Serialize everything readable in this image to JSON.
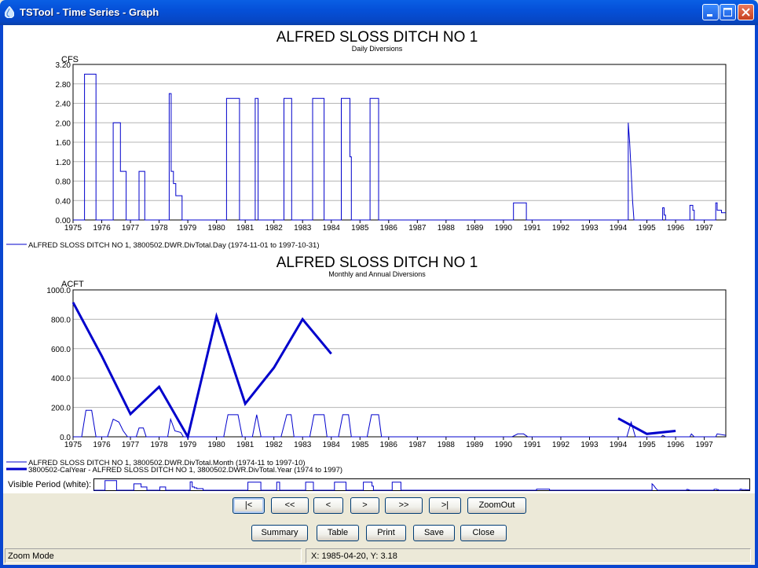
{
  "window": {
    "title": "TSTool - Time Series - Graph"
  },
  "colors": {
    "series": "#0000CC",
    "grid": "#B4B4B4",
    "axis": "#000000"
  },
  "graph1": {
    "title": "ALFRED SLOSS DITCH NO 1",
    "subtitle": "Daily Diversions",
    "units": "CFS",
    "legend": [
      "ALFRED SLOSS DITCH NO 1, 3800502.DWR.DivTotal.Day (1974-11-01 to 1997-10-31)"
    ]
  },
  "graph2": {
    "title": "ALFRED SLOSS DITCH NO 1",
    "subtitle": "Monthly and Annual Diversions",
    "units": "ACFT",
    "legend": [
      "ALFRED SLOSS DITCH NO 1, 3800502.DWR.DivTotal.Month (1974-11 to 1997-10)",
      "3800502-CalYear - ALFRED SLOSS DITCH NO 1, 3800502.DWR.DivTotal.Year (1974 to 1997)"
    ]
  },
  "visible_period_label": "Visible Period (white):",
  "nav_buttons": [
    "|<",
    "<<",
    "<",
    ">",
    ">>",
    ">|",
    "ZoomOut"
  ],
  "action_buttons": [
    "Summary",
    "Table",
    "Print",
    "Save",
    "Close"
  ],
  "status": {
    "mode": "Zoom Mode",
    "coords": "X:  1985-04-20,  Y:  3.18"
  },
  "chart_data": [
    {
      "type": "line",
      "title": "ALFRED SLOSS DITCH NO 1",
      "subtitle": "Daily Diversions",
      "ylabel": "CFS",
      "xlim": [
        1975,
        1997.75
      ],
      "ylim": [
        0,
        3.2
      ],
      "x_ticks": [
        1975,
        1976,
        1977,
        1978,
        1979,
        1980,
        1981,
        1982,
        1983,
        1984,
        1985,
        1986,
        1987,
        1988,
        1989,
        1990,
        1991,
        1992,
        1993,
        1994,
        1995,
        1996,
        1997
      ],
      "y_ticks": [
        "0.00",
        "0.40",
        "0.80",
        "1.20",
        "1.60",
        "2.00",
        "2.40",
        "2.80",
        "3.20"
      ],
      "grid": true,
      "series": [
        {
          "name": "ALFRED SLOSS DITCH NO 1, 3800502.DWR.DivTotal.Day (1974-11-01 to 1997-10-31)",
          "step": true,
          "points": [
            [
              1975,
              0
            ],
            [
              1975.4,
              0
            ],
            [
              1975.4,
              3.0
            ],
            [
              1975.8,
              3.0
            ],
            [
              1975.8,
              0
            ],
            [
              1976.4,
              0
            ],
            [
              1976.4,
              2.0
            ],
            [
              1976.65,
              2.0
            ],
            [
              1976.65,
              1.0
            ],
            [
              1976.85,
              1.0
            ],
            [
              1976.85,
              0
            ],
            [
              1977.3,
              0
            ],
            [
              1977.3,
              1.0
            ],
            [
              1977.5,
              1.0
            ],
            [
              1977.5,
              0
            ],
            [
              1978.35,
              0
            ],
            [
              1978.35,
              2.6
            ],
            [
              1978.42,
              2.6
            ],
            [
              1978.42,
              1.0
            ],
            [
              1978.5,
              1.0
            ],
            [
              1978.5,
              0.75
            ],
            [
              1978.58,
              0.75
            ],
            [
              1978.58,
              0.5
            ],
            [
              1978.8,
              0.5
            ],
            [
              1978.8,
              0
            ],
            [
              1980.35,
              0
            ],
            [
              1980.35,
              2.5
            ],
            [
              1980.8,
              2.5
            ],
            [
              1980.8,
              0
            ],
            [
              1981.35,
              0
            ],
            [
              1981.35,
              2.5
            ],
            [
              1981.45,
              2.5
            ],
            [
              1981.45,
              0
            ],
            [
              1982.35,
              0
            ],
            [
              1982.35,
              2.5
            ],
            [
              1982.62,
              2.5
            ],
            [
              1982.62,
              0
            ],
            [
              1983.35,
              0
            ],
            [
              1983.35,
              2.5
            ],
            [
              1983.75,
              2.5
            ],
            [
              1983.75,
              0
            ],
            [
              1984.35,
              0
            ],
            [
              1984.35,
              2.5
            ],
            [
              1984.65,
              2.5
            ],
            [
              1984.65,
              1.3
            ],
            [
              1984.7,
              1.3
            ],
            [
              1984.7,
              0
            ],
            [
              1985.35,
              0
            ],
            [
              1985.35,
              2.5
            ],
            [
              1985.65,
              2.5
            ],
            [
              1985.65,
              0
            ],
            [
              1990.35,
              0
            ],
            [
              1990.35,
              0.35
            ],
            [
              1990.8,
              0.35
            ],
            [
              1990.8,
              0
            ],
            [
              1994.35,
              0
            ],
            [
              1994.35,
              2.0
            ],
            [
              1994.4,
              1.6
            ],
            [
              1994.45,
              1.0
            ],
            [
              1994.5,
              0.4
            ],
            [
              1994.55,
              0
            ],
            [
              1995.55,
              0
            ],
            [
              1995.55,
              0.25
            ],
            [
              1995.6,
              0.25
            ],
            [
              1995.6,
              0.1
            ],
            [
              1995.65,
              0.1
            ],
            [
              1995.65,
              0
            ],
            [
              1996.5,
              0
            ],
            [
              1996.5,
              0.3
            ],
            [
              1996.6,
              0.3
            ],
            [
              1996.6,
              0.2
            ],
            [
              1996.65,
              0.2
            ],
            [
              1996.65,
              0
            ],
            [
              1997.4,
              0
            ],
            [
              1997.4,
              0.35
            ],
            [
              1997.45,
              0.35
            ],
            [
              1997.45,
              0.2
            ],
            [
              1997.6,
              0.2
            ],
            [
              1997.6,
              0.15
            ],
            [
              1997.75,
              0.15
            ]
          ]
        }
      ]
    },
    {
      "type": "line",
      "title": "ALFRED SLOSS DITCH NO 1",
      "subtitle": "Monthly and Annual Diversions",
      "ylabel": "ACFT",
      "xlim": [
        1975,
        1997.75
      ],
      "ylim": [
        0,
        1000
      ],
      "x_ticks": [
        1975,
        1976,
        1977,
        1978,
        1979,
        1980,
        1981,
        1982,
        1983,
        1984,
        1985,
        1986,
        1987,
        1988,
        1989,
        1990,
        1991,
        1992,
        1993,
        1994,
        1995,
        1996,
        1997
      ],
      "y_ticks": [
        "0.0",
        "200.0",
        "400.0",
        "600.0",
        "800.0",
        "1000.0"
      ],
      "grid": true,
      "series": [
        {
          "name": "ALFRED SLOSS DITCH NO 1, 3800502.DWR.DivTotal.Month (1974-11 to 1997-10)",
          "width": 1,
          "points": [
            [
              1975.0,
              0
            ],
            [
              1975.3,
              0
            ],
            [
              1975.45,
              180
            ],
            [
              1975.65,
              180
            ],
            [
              1975.8,
              0
            ],
            [
              1976.2,
              0
            ],
            [
              1976.4,
              120
            ],
            [
              1976.6,
              100
            ],
            [
              1976.75,
              40
            ],
            [
              1976.9,
              0
            ],
            [
              1977.2,
              0
            ],
            [
              1977.3,
              60
            ],
            [
              1977.45,
              60
            ],
            [
              1977.55,
              0
            ],
            [
              1978.3,
              0
            ],
            [
              1978.4,
              120
            ],
            [
              1978.55,
              40
            ],
            [
              1978.75,
              30
            ],
            [
              1978.85,
              0
            ],
            [
              1980.25,
              0
            ],
            [
              1980.4,
              150
            ],
            [
              1980.75,
              150
            ],
            [
              1980.9,
              0
            ],
            [
              1981.25,
              0
            ],
            [
              1981.4,
              150
            ],
            [
              1981.55,
              0
            ],
            [
              1982.25,
              0
            ],
            [
              1982.45,
              150
            ],
            [
              1982.6,
              150
            ],
            [
              1982.7,
              0
            ],
            [
              1983.25,
              0
            ],
            [
              1983.4,
              150
            ],
            [
              1983.75,
              150
            ],
            [
              1983.85,
              0
            ],
            [
              1984.25,
              0
            ],
            [
              1984.4,
              150
            ],
            [
              1984.6,
              150
            ],
            [
              1984.7,
              0
            ],
            [
              1985.25,
              0
            ],
            [
              1985.4,
              150
            ],
            [
              1985.65,
              150
            ],
            [
              1985.75,
              0
            ],
            [
              1990.3,
              0
            ],
            [
              1990.5,
              20
            ],
            [
              1990.7,
              20
            ],
            [
              1990.85,
              0
            ],
            [
              1994.3,
              0
            ],
            [
              1994.45,
              100
            ],
            [
              1994.6,
              0
            ],
            [
              1995.5,
              0
            ],
            [
              1995.55,
              10
            ],
            [
              1995.65,
              0
            ],
            [
              1996.5,
              0
            ],
            [
              1996.55,
              20
            ],
            [
              1996.65,
              0
            ],
            [
              1997.4,
              0
            ],
            [
              1997.45,
              20
            ],
            [
              1997.75,
              10
            ]
          ]
        },
        {
          "name": "3800502-CalYear - ALFRED SLOSS DITCH NO 1, 3800502.DWR.DivTotal.Year (1974 to 1997)",
          "width": 3,
          "segments": [
            [
              [
                1975,
                915
              ],
              [
                1976,
                550
              ],
              [
                1977,
                155
              ],
              [
                1978,
                340
              ],
              [
                1979,
                0
              ],
              [
                1980,
                820
              ],
              [
                1981,
                225
              ],
              [
                1982,
                470
              ],
              [
                1983,
                800
              ],
              [
                1984,
                565
              ]
            ],
            [
              [
                1994,
                125
              ],
              [
                1995,
                20
              ],
              [
                1996,
                40
              ]
            ]
          ]
        }
      ]
    }
  ]
}
